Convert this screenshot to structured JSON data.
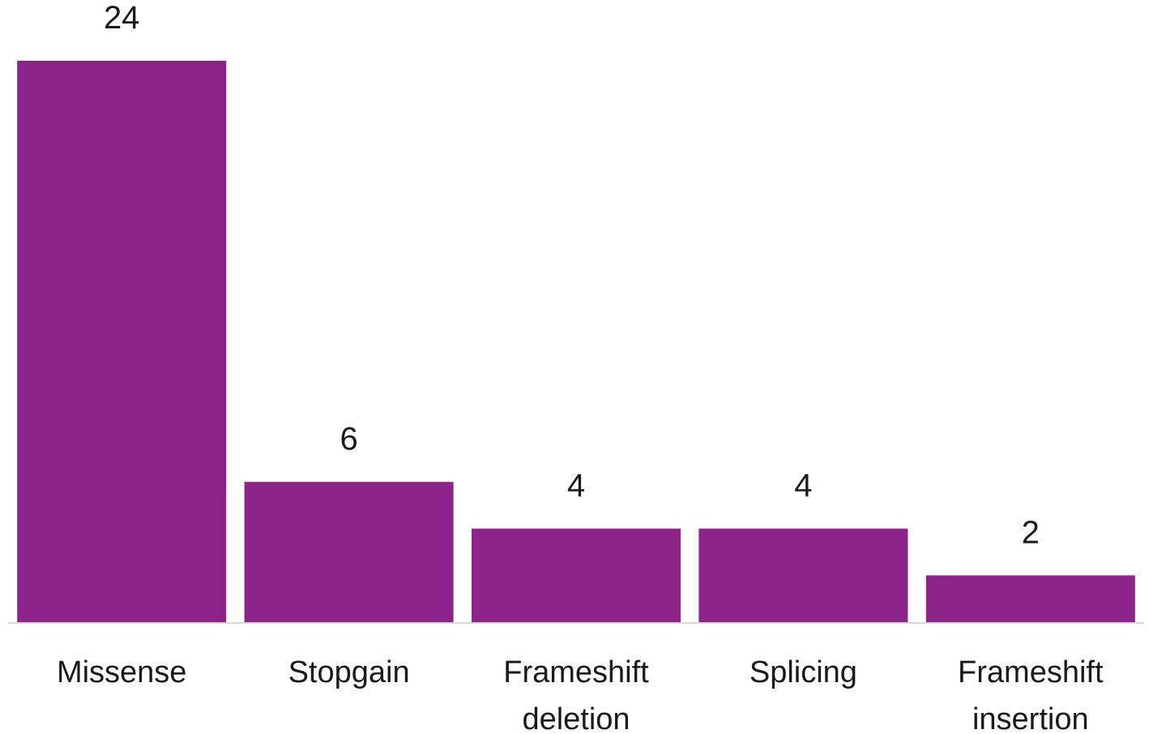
{
  "chart_data": {
    "type": "bar",
    "title": "",
    "xlabel": "",
    "ylabel": "",
    "categories": [
      [
        "Missense"
      ],
      [
        "Stopgain"
      ],
      [
        "Frameshift",
        "deletion"
      ],
      [
        "Splicing"
      ],
      [
        "Frameshift",
        "insertion"
      ]
    ],
    "values": [
      24,
      6,
      4,
      4,
      2
    ],
    "ylim": [
      0,
      24
    ],
    "grid": false,
    "legend": "none",
    "bar_color": "#8B2388",
    "baseline_color": "#d9d9d9",
    "show_data_labels": true
  }
}
